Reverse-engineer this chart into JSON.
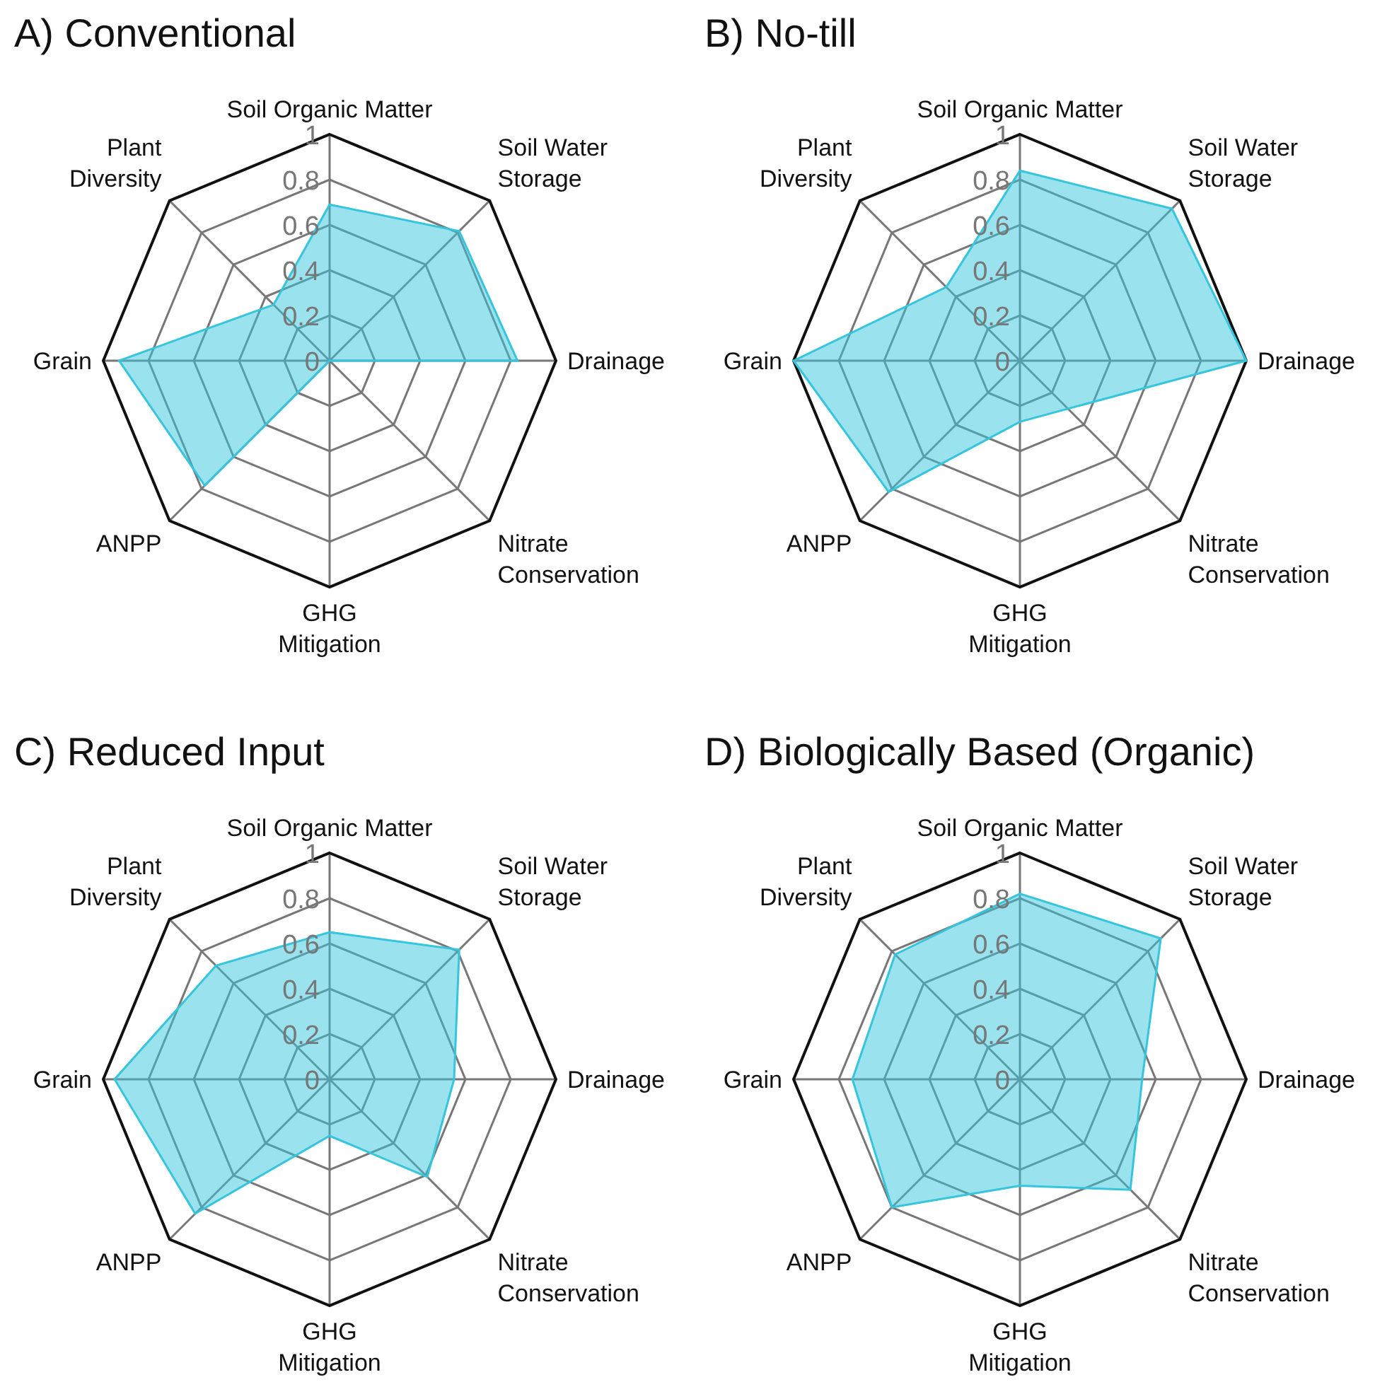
{
  "chart_data": [
    {
      "type": "radar",
      "title": "A) Conventional",
      "categories": [
        "Soil Organic Matter",
        "Soil Water\nStorage",
        "Drainage",
        "Nitrate\nConservation",
        "GHG\nMitigation",
        "ANPP",
        "Grain",
        "Plant\nDiversity"
      ],
      "series": [
        {
          "color": "#36c5dc",
          "values": [
            0.69,
            0.81,
            0.83,
            0,
            0,
            0.78,
            0.93,
            0.35
          ]
        }
      ],
      "ylim": [
        0,
        1
      ],
      "yticks": [
        0,
        0.2,
        0.4,
        0.6,
        0.8,
        1
      ],
      "grid": true
    },
    {
      "type": "radar",
      "title": "B) No-till",
      "categories": [
        "Soil Organic Matter",
        "Soil Water\nStorage",
        "Drainage",
        "Nitrate\nConservation",
        "GHG\nMitigation",
        "ANPP",
        "Grain",
        "Plant\nDiversity"
      ],
      "series": [
        {
          "color": "#36c5dc",
          "values": [
            0.84,
            0.95,
            1,
            0.3,
            0.27,
            0.82,
            1,
            0.46
          ]
        }
      ],
      "ylim": [
        0,
        1
      ],
      "yticks": [
        0,
        0.2,
        0.4,
        0.6,
        0.8,
        1
      ],
      "grid": true
    },
    {
      "type": "radar",
      "title": "C) Reduced Input",
      "categories": [
        "Soil Organic Matter",
        "Soil Water\nStorage",
        "Drainage",
        "Nitrate\nConservation",
        "GHG\nMitigation",
        "ANPP",
        "Grain",
        "Plant\nDiversity"
      ],
      "series": [
        {
          "color": "#36c5dc",
          "values": [
            0.65,
            0.81,
            0.55,
            0.61,
            0.25,
            0.84,
            0.95,
            0.71
          ]
        }
      ],
      "ylim": [
        0,
        1
      ],
      "yticks": [
        0,
        0.2,
        0.4,
        0.6,
        0.8,
        1
      ],
      "grid": true
    },
    {
      "type": "radar",
      "title": "D) Biologically Based (Organic)",
      "categories": [
        "Soil Organic Matter",
        "Soil Water\nStorage",
        "Drainage",
        "Nitrate\nConservation",
        "GHG\nMitigation",
        "ANPP",
        "Grain",
        "Plant\nDiversity"
      ],
      "series": [
        {
          "color": "#36c5dc",
          "values": [
            0.82,
            0.88,
            0.54,
            0.69,
            0.47,
            0.8,
            0.74,
            0.78
          ]
        }
      ],
      "ylim": [
        0,
        1
      ],
      "yticks": [
        0,
        0.2,
        0.4,
        0.6,
        0.8,
        1
      ],
      "grid": true
    }
  ]
}
